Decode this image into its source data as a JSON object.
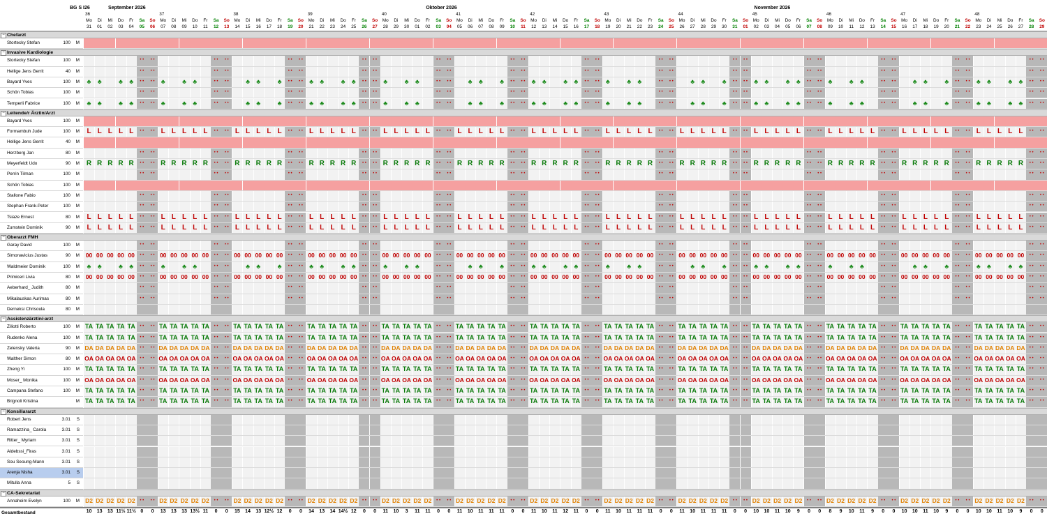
{
  "header": {
    "code": "BG  S I26",
    "months": [
      "September 2026",
      "Oktober 2026",
      "November 2026"
    ],
    "weeks": [
      "36",
      "37",
      "38",
      "39",
      "40",
      "41",
      "42",
      "43",
      "44",
      "45",
      "46",
      "47",
      "48"
    ],
    "weekdays": [
      "Mo",
      "Di",
      "Mi",
      "Do",
      "Fr",
      "Sa",
      "So"
    ],
    "dates": [
      "31",
      "01",
      "02",
      "03",
      "04",
      "05",
      "06",
      "07",
      "08",
      "09",
      "10",
      "11",
      "12",
      "13",
      "14",
      "15",
      "16",
      "17",
      "18",
      "19",
      "20",
      "21",
      "22",
      "23",
      "24",
      "25",
      "26",
      "27",
      "28",
      "29",
      "30",
      "01",
      "02",
      "03",
      "04",
      "05",
      "06",
      "07",
      "08",
      "09",
      "10",
      "11",
      "12",
      "13",
      "14",
      "15",
      "16",
      "17",
      "18",
      "19",
      "20",
      "21",
      "22",
      "23",
      "24",
      "25",
      "26",
      "27",
      "28",
      "29",
      "30",
      "31",
      "01",
      "02",
      "03",
      "04",
      "05",
      "06",
      "07",
      "08",
      "09",
      "10",
      "11",
      "12",
      "13",
      "14",
      "15",
      "16",
      "17",
      "18",
      "19",
      "20",
      "21",
      "22",
      "23",
      "24",
      "25",
      "26",
      "27",
      "28",
      "29"
    ]
  },
  "groups": [
    {
      "name": "Chefarzt",
      "rows": [
        {
          "name": "Stortecky Stefan",
          "pct": "100",
          "unit": "M",
          "pattern": "pink"
        }
      ]
    },
    {
      "name": "Invasive Kardiologie",
      "rows": [
        {
          "name": "Stortecky Stefan",
          "pct": "100",
          "unit": "M",
          "pattern": "dots"
        },
        {
          "name": "Hellige Jens Gerrit",
          "pct": "40",
          "unit": "M",
          "pattern": "dots"
        },
        {
          "name": "Bayard Yves",
          "pct": "100",
          "unit": "M",
          "pattern": "palm"
        },
        {
          "name": "Schön Tobias",
          "pct": "100",
          "unit": "M",
          "pattern": "dots"
        },
        {
          "name": "Temperli Fabrice",
          "pct": "100",
          "unit": "M",
          "pattern": "palm"
        }
      ]
    },
    {
      "name": "Leitende/r Ärztin/Arzt",
      "rows": [
        {
          "name": "Bayard Yves",
          "pct": "100",
          "unit": "M",
          "pattern": "pink"
        },
        {
          "name": "Formambuh Jude",
          "pct": "100",
          "unit": "M",
          "pattern": "L"
        },
        {
          "name": "Hellige Jens Gerrit",
          "pct": "40",
          "unit": "M",
          "pattern": "pink"
        },
        {
          "name": "Herzberg Jan",
          "pct": "80",
          "unit": "M",
          "pattern": "dots"
        },
        {
          "name": "Meyerfeldt Udo",
          "pct": "90",
          "unit": "M",
          "pattern": "R"
        },
        {
          "name": "Perrin Tilman",
          "pct": "100",
          "unit": "M",
          "pattern": "dots"
        },
        {
          "name": "Schön Tobias",
          "pct": "100",
          "unit": "M",
          "pattern": "pink"
        },
        {
          "name": "Stallone Fabio",
          "pct": "100",
          "unit": "M",
          "pattern": "dots"
        },
        {
          "name": "Stephan Frank-Peter",
          "pct": "100",
          "unit": "M",
          "pattern": "dots"
        },
        {
          "name": "Tsiaze Ernest",
          "pct": "80",
          "unit": "M",
          "pattern": "L"
        },
        {
          "name": "Zumstein Dominik",
          "pct": "90",
          "unit": "M",
          "pattern": "L"
        }
      ]
    },
    {
      "name": "Oberarzt FMH",
      "rows": [
        {
          "name": "Garay David",
          "pct": "100",
          "unit": "M",
          "pattern": "dots"
        },
        {
          "name": "Simonavicius Justas",
          "pct": "90",
          "unit": "M",
          "pattern": "00"
        },
        {
          "name": "Waldmeier Dominik",
          "pct": "100",
          "unit": "M",
          "pattern": "palm"
        },
        {
          "name": "Primiceri Livia",
          "pct": "80",
          "unit": "M",
          "pattern": "00"
        },
        {
          "name": "Aeberhard_ Judith",
          "pct": "80",
          "unit": "M",
          "pattern": "dots"
        },
        {
          "name": "Mikalauskas Aurimas",
          "pct": "80",
          "unit": "M",
          "pattern": "dots"
        },
        {
          "name": "Derneksi Chrisoula",
          "pct": "80",
          "unit": "M",
          "pattern": "empty"
        }
      ]
    },
    {
      "name": "Assistenzärztin/-arzt",
      "rows": [
        {
          "name": "Ziliotti Roberto",
          "pct": "100",
          "unit": "M",
          "pattern": "TA"
        },
        {
          "name": "Rudenko Alena",
          "pct": "100",
          "unit": "M",
          "pattern": "TA"
        },
        {
          "name": "Zelensky Valeria",
          "pct": "90",
          "unit": "M",
          "pattern": "DA"
        },
        {
          "name": "Walther Simon",
          "pct": "80",
          "unit": "M",
          "pattern": "OA"
        },
        {
          "name": "Zheng Yi",
          "pct": "100",
          "unit": "M",
          "pattern": "TA"
        },
        {
          "name": "Moser_ Monika",
          "pct": "100",
          "unit": "M",
          "pattern": "OA"
        },
        {
          "name": "Campana Stefano",
          "pct": "100",
          "unit": "M",
          "pattern": "TA"
        },
        {
          "name": "Brignoli Kristina",
          "pct": "",
          "unit": "M",
          "pattern": "TA"
        }
      ]
    },
    {
      "name": "Konsiliararzt",
      "rows": [
        {
          "name": "Robert Jens",
          "pct": "3.01",
          "unit": "S",
          "pattern": "empty"
        },
        {
          "name": "Ramazzina_ Carola",
          "pct": "3.01",
          "unit": "S",
          "pattern": "empty"
        },
        {
          "name": "Ritter_ Myriam",
          "pct": "3.01",
          "unit": "S",
          "pattern": "empty"
        },
        {
          "name": "Aldebssi_Firas",
          "pct": "3.01",
          "unit": "S",
          "pattern": "empty"
        },
        {
          "name": "Sou Seoung-Mann",
          "pct": "3.01",
          "unit": "S",
          "pattern": "empty"
        },
        {
          "name": "Arenja Nisha",
          "pct": "3.01",
          "unit": "S",
          "pattern": "empty",
          "selected": true
        },
        {
          "name": "Mitulla Anna",
          "pct": "5",
          "unit": "S",
          "pattern": "empty"
        }
      ]
    },
    {
      "name": "CA-Sekretariat",
      "rows": [
        {
          "name": "Annaheim Evelyn",
          "pct": "100",
          "unit": "M",
          "pattern": "D2"
        }
      ]
    }
  ],
  "footer": {
    "label": "Gesamtbestand",
    "totals": [
      "10",
      "13",
      "13",
      "11½",
      "11½",
      "0",
      "0",
      "13",
      "13",
      "13",
      "13½",
      "11",
      "0",
      "0",
      "15",
      "14",
      "13",
      "12½",
      "12",
      "0",
      "0",
      "14",
      "13",
      "14",
      "14½",
      "12",
      "0",
      "0",
      "11",
      "10",
      "3",
      "11",
      "11",
      "0",
      "0",
      "11",
      "10",
      "11",
      "11",
      "11",
      "0",
      "0",
      "11",
      "10",
      "11",
      "12",
      "11",
      "0",
      "0",
      "11",
      "10",
      "11",
      "11",
      "11",
      "0",
      "0",
      "11",
      "10",
      "11",
      "11",
      "11",
      "0",
      "0",
      "10",
      "10",
      "11",
      "10",
      "9",
      "0",
      "0",
      "8",
      "9",
      "10",
      "11",
      "9",
      "0",
      "0",
      "10",
      "10",
      "11",
      "10",
      "9",
      "0",
      "0",
      "10",
      "10",
      "11",
      "10",
      "9",
      "0",
      "0"
    ]
  },
  "colors": {
    "pink": "#f5a0a0",
    "weekend": "#b8b8b8",
    "group_bg": "#d9d9d9",
    "selected": "#b8cdee",
    "dot": "#c00000"
  }
}
